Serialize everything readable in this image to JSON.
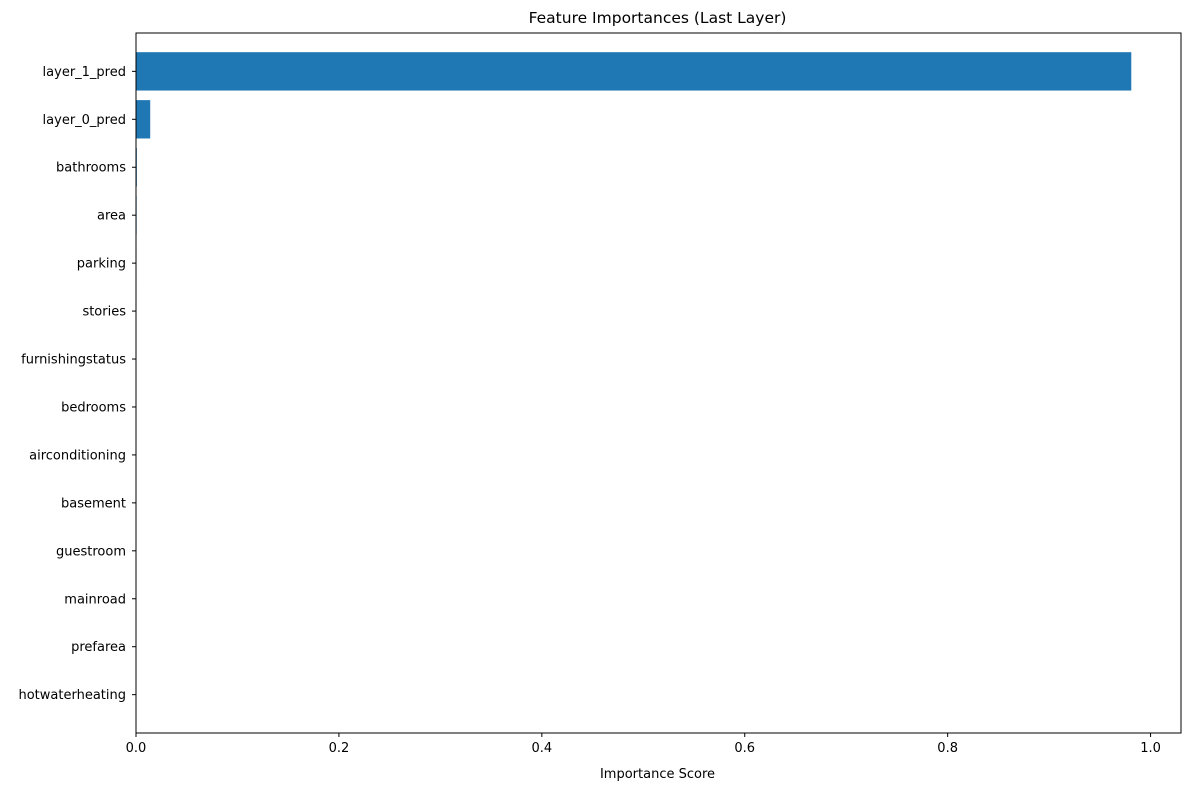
{
  "chart_data": {
    "type": "bar",
    "orientation": "horizontal",
    "title": "Feature Importances (Last Layer)",
    "xlabel": "Importance Score",
    "ylabel": "",
    "xlim": [
      0,
      1.03
    ],
    "xticks": [
      0.0,
      0.2,
      0.4,
      0.6,
      0.8,
      1.0
    ],
    "xtick_labels": [
      "0.0",
      "0.2",
      "0.4",
      "0.6",
      "0.8",
      "1.0"
    ],
    "grid": false,
    "bar_color": "#1f77b4",
    "categories": [
      "layer_1_pred",
      "layer_0_pred",
      "bathrooms",
      "area",
      "parking",
      "stories",
      "furnishingstatus",
      "bedrooms",
      "airconditioning",
      "basement",
      "guestroom",
      "mainroad",
      "prefarea",
      "hotwaterheating"
    ],
    "values": [
      0.981,
      0.014,
      0.0008,
      0.0006,
      0.0005,
      0.0004,
      0.0003,
      0.0003,
      0.0002,
      0.0002,
      0.0001,
      0.0001,
      0.0001,
      0.0001
    ]
  }
}
